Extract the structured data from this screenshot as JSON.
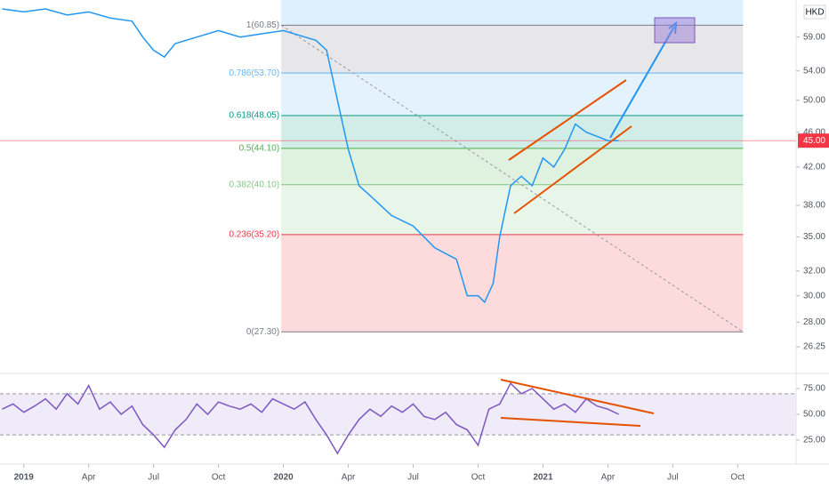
{
  "chart_data": {
    "type": "line",
    "currency": "HKD",
    "log_scale": true,
    "xlim": [
      -1.1,
      35.7
    ],
    "xticks": [
      {
        "value": 0,
        "label": "2019"
      },
      {
        "value": 3,
        "label": "Apr"
      },
      {
        "value": 6,
        "label": "Jul"
      },
      {
        "value": 9,
        "label": "Oct"
      },
      {
        "value": 12,
        "label": "2020"
      },
      {
        "value": 15,
        "label": "Apr"
      },
      {
        "value": 18,
        "label": "Jul"
      },
      {
        "value": 21,
        "label": "Oct"
      },
      {
        "value": 24,
        "label": "2021"
      },
      {
        "value": 27,
        "label": "Apr"
      },
      {
        "value": 30,
        "label": "Jul"
      },
      {
        "value": 33,
        "label": "Oct"
      }
    ],
    "ylim": [
      24.6,
      65.0
    ],
    "yticks": [
      {
        "value": 26.25,
        "label": "26.25"
      },
      {
        "value": 28,
        "label": "28.00"
      },
      {
        "value": 30,
        "label": "30.00"
      },
      {
        "value": 32,
        "label": "32.00"
      },
      {
        "value": 35,
        "label": "35.00"
      },
      {
        "value": 38,
        "label": "38.00"
      },
      {
        "value": 42,
        "label": "42.00"
      },
      {
        "value": 46,
        "label": "46.00"
      },
      {
        "value": 50,
        "label": "50.00"
      },
      {
        "value": 54,
        "label": "54.00"
      },
      {
        "value": 59,
        "label": "59.00"
      }
    ],
    "last_price": {
      "value": 45,
      "label": "45.00",
      "color": "#f23645"
    },
    "series": [
      {
        "color": "#2196f3",
        "x": [
          -1,
          0,
          1,
          2,
          3,
          4,
          5,
          5.5,
          6,
          6.5,
          7,
          8,
          9,
          10,
          11,
          12,
          13,
          13.5,
          14,
          14.5,
          15,
          15.5,
          16,
          17,
          18,
          19,
          20,
          20.5,
          21,
          21.3,
          21.7,
          22,
          22.5,
          23,
          23.5,
          24,
          24.5,
          25,
          25.5,
          26,
          26.5,
          27,
          27.5
        ],
        "values": [
          63.5,
          63,
          63.5,
          62.5,
          63,
          62,
          61.5,
          59,
          57,
          56,
          58,
          59,
          60,
          59,
          59.5,
          60,
          59,
          58.5,
          57,
          50,
          44,
          40,
          39,
          37,
          36,
          34,
          33,
          30,
          30,
          29.5,
          31,
          35,
          40,
          41,
          40,
          43,
          42,
          44,
          47,
          46,
          45.5,
          45,
          45
        ]
      }
    ],
    "fib_x": [
      11.9,
      33.25
    ],
    "fib_levels": [
      {
        "value": 60.85,
        "label": "1(60.85)",
        "color": "#787b86"
      },
      {
        "value": 53.7,
        "label": "0.786(53.70)",
        "color": "#64b5f6"
      },
      {
        "value": 48.05,
        "label": "0.618(48.05)",
        "color": "#089981"
      },
      {
        "value": 44.1,
        "label": "0.5(44.10)",
        "color": "#4caf50"
      },
      {
        "value": 40.1,
        "label": "0.382(40.10)",
        "color": "#81c784"
      },
      {
        "value": 35.2,
        "label": "0.236(35.20)",
        "color": "#f23645"
      },
      {
        "value": 27.3,
        "label": "0(27.30)",
        "color": "#787b86"
      }
    ],
    "rsi": {
      "color": "#7e57c2",
      "ylim": [
        3.4,
        89.7
      ],
      "yticks": [
        {
          "value": 25,
          "label": "25.00"
        },
        {
          "value": 50,
          "label": "50.00"
        },
        {
          "value": 75,
          "label": "75.00"
        }
      ],
      "band": [
        30,
        70
      ],
      "x": [
        -1,
        -0.5,
        0,
        0.5,
        1,
        1.5,
        2,
        2.5,
        3,
        3.5,
        4,
        4.5,
        5,
        5.5,
        6,
        6.5,
        7,
        7.5,
        8,
        8.5,
        9,
        9.5,
        10,
        10.5,
        11,
        11.5,
        12,
        12.5,
        13,
        13.5,
        14,
        14.5,
        15,
        15.5,
        16,
        16.5,
        17,
        17.5,
        18,
        18.5,
        19,
        19.5,
        20,
        20.5,
        21,
        21.5,
        22,
        22.5,
        23,
        23.5,
        24,
        24.5,
        25,
        25.5,
        26,
        26.5,
        27,
        27.5
      ],
      "values": [
        55,
        60,
        52,
        58,
        65,
        55,
        70,
        60,
        78,
        55,
        62,
        50,
        58,
        40,
        30,
        18,
        35,
        45,
        60,
        50,
        62,
        58,
        55,
        60,
        52,
        65,
        60,
        55,
        62,
        45,
        30,
        12,
        30,
        45,
        55,
        48,
        58,
        52,
        60,
        48,
        45,
        52,
        40,
        35,
        20,
        55,
        60,
        80,
        70,
        75,
        65,
        55,
        60,
        52,
        65,
        58,
        55,
        50
      ]
    }
  }
}
